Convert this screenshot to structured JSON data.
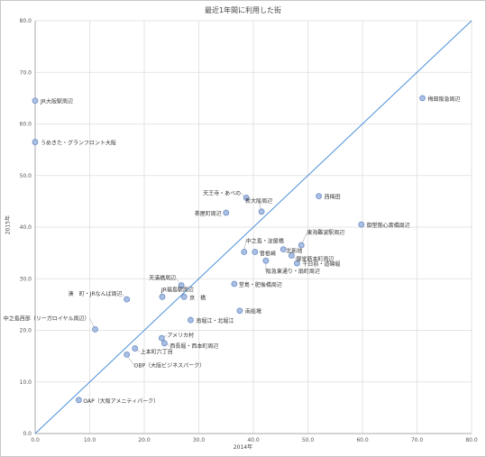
{
  "chart_data": {
    "type": "scatter",
    "title": "最近1年間に利用した街",
    "xlabel": "2014年",
    "ylabel": "2015年",
    "xlim": [
      0,
      80
    ],
    "ylim": [
      0,
      80
    ],
    "xticks": [
      "0.0",
      "10.0",
      "20.0",
      "30.0",
      "40.0",
      "50.0",
      "60.0",
      "70.0",
      "80.0"
    ],
    "yticks": [
      "0.0",
      "10.0",
      "20.0",
      "30.0",
      "40.0",
      "50.0",
      "60.0",
      "70.0",
      "80.0"
    ],
    "grid": true,
    "reference_line": {
      "from": [
        0,
        0
      ],
      "to": [
        80,
        80
      ],
      "color": "#4a90d9"
    },
    "marker_color": "#a9bfe3",
    "marker_edge": "#6d8cc4",
    "points": [
      {
        "label": "梅田阪急周辺",
        "x": 71.0,
        "y": 65.0
      },
      {
        "label": "JR大阪駅周辺",
        "x": 0.0,
        "y": 64.5
      },
      {
        "label": "うめきた・グランフロント大阪",
        "x": 0.0,
        "y": 56.5
      },
      {
        "label": "西梅田",
        "x": 52.0,
        "y": 46.0
      },
      {
        "label": "天王寺・あべの",
        "x": 38.7,
        "y": 45.7
      },
      {
        "label": "新大阪周辺",
        "x": 41.5,
        "y": 43.0
      },
      {
        "label": "茶屋町周辺",
        "x": 35.0,
        "y": 42.8
      },
      {
        "label": "御堂筋心斎橋周辺",
        "x": 59.8,
        "y": 40.5
      },
      {
        "label": "中之島・淀屋橋",
        "x": 38.3,
        "y": 35.2
      },
      {
        "label": "東海難波駅周辺",
        "x": 48.8,
        "y": 36.5
      },
      {
        "label": "曽根崎",
        "x": 40.3,
        "y": 35.2
      },
      {
        "label": "北新地",
        "x": 45.5,
        "y": 35.7
      },
      {
        "label": "御堂筋本町周辺",
        "x": 47.0,
        "y": 34.5
      },
      {
        "label": "千日前・道頓堀",
        "x": 48.0,
        "y": 33.0
      },
      {
        "label": "阪急東通り・扇町周辺",
        "x": 42.3,
        "y": 33.5
      },
      {
        "label": "天満橋周辺",
        "x": 26.8,
        "y": 28.7
      },
      {
        "label": "堂島・肥後橋周辺",
        "x": 36.5,
        "y": 29.0
      },
      {
        "label": "JR福島駅周辺",
        "x": 23.3,
        "y": 26.5
      },
      {
        "label": "湊　町・JRなんば周辺",
        "x": 16.8,
        "y": 26.0
      },
      {
        "label": "京　橋",
        "x": 27.3,
        "y": 26.5
      },
      {
        "label": "南船場",
        "x": 37.5,
        "y": 23.8
      },
      {
        "label": "南堀江・北堀江",
        "x": 28.5,
        "y": 22.0
      },
      {
        "label": "中之島西部（リーガロイヤル周辺）",
        "x": 11.0,
        "y": 20.2
      },
      {
        "label": "アメリカ村",
        "x": 23.2,
        "y": 18.5
      },
      {
        "label": "西長堀・西本町周辺",
        "x": 23.7,
        "y": 17.5
      },
      {
        "label": "上本町六丁目",
        "x": 18.3,
        "y": 16.5
      },
      {
        "label": "OBP（大阪ビジネスパーク）",
        "x": 16.8,
        "y": 15.3
      },
      {
        "label": "OAP（大阪アメニティパーク）",
        "x": 8.0,
        "y": 6.5
      }
    ]
  }
}
